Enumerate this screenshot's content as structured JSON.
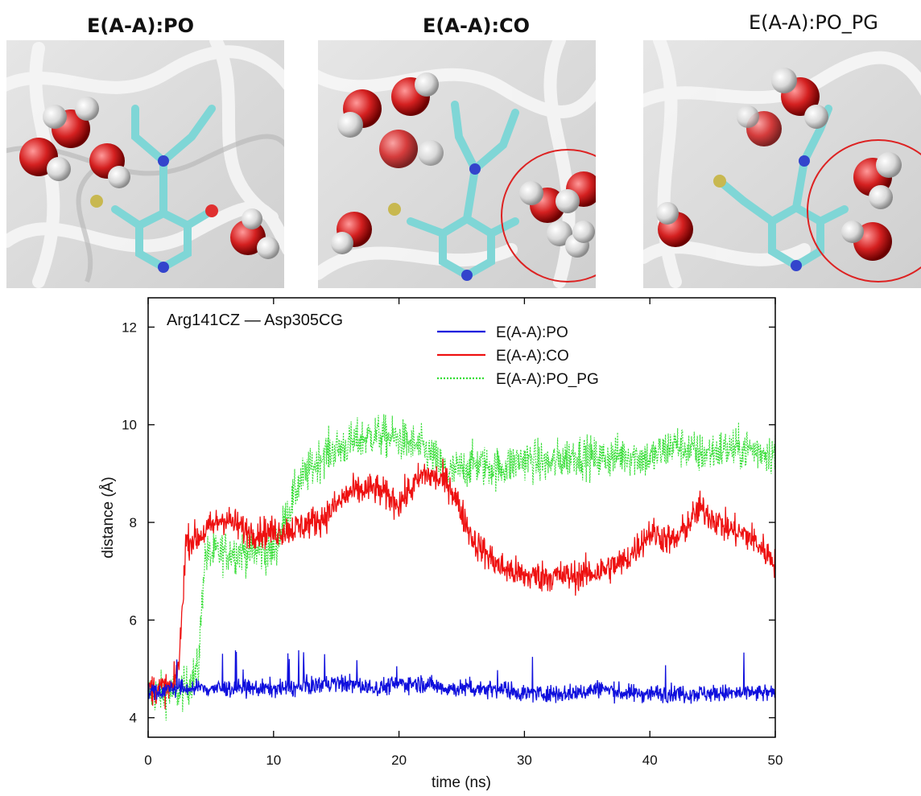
{
  "panels": [
    {
      "title": "E(A-A):PO"
    },
    {
      "title": "E(A-A):CO"
    },
    {
      "title": "E(A-A):PO_PG"
    }
  ],
  "chart_data": {
    "type": "line",
    "annotation": "Arg141CZ — Asp305CG",
    "xlabel": "time (ns)",
    "ylabel": "distance (Å)",
    "xlim": [
      0,
      50
    ],
    "ylim": [
      3.6,
      12.6
    ],
    "xticks": [
      0,
      10,
      20,
      30,
      40,
      50
    ],
    "yticks": [
      4,
      6,
      8,
      10,
      12
    ],
    "legend_position": "top-right",
    "series": [
      {
        "name": "E(A-A):PO",
        "color": "#1010dd",
        "style": "solid",
        "x": [
          0,
          2,
          4,
          6,
          8,
          10,
          12,
          14,
          16,
          18,
          20,
          22,
          24,
          26,
          28,
          30,
          32,
          34,
          36,
          38,
          40,
          42,
          44,
          46,
          48,
          50
        ],
        "y": [
          4.5,
          4.6,
          4.6,
          4.6,
          4.6,
          4.6,
          4.6,
          4.7,
          4.7,
          4.6,
          4.7,
          4.7,
          4.6,
          4.6,
          4.6,
          4.5,
          4.5,
          4.5,
          4.6,
          4.5,
          4.5,
          4.5,
          4.5,
          4.5,
          4.5,
          4.5
        ]
      },
      {
        "name": "E(A-A):CO",
        "color": "#ee1111",
        "style": "solid",
        "x": [
          0,
          2,
          2.5,
          3,
          4,
          6,
          8,
          10,
          12,
          14,
          16,
          18,
          20,
          22,
          24,
          26,
          28,
          30,
          32,
          34,
          36,
          38,
          40,
          42,
          44,
          46,
          48,
          50
        ],
        "y": [
          4.6,
          4.6,
          5.2,
          7.6,
          7.7,
          8.1,
          7.8,
          7.8,
          7.9,
          8.1,
          8.6,
          8.7,
          8.4,
          9.0,
          8.8,
          7.6,
          7.1,
          6.9,
          6.9,
          6.9,
          7.0,
          7.2,
          7.8,
          7.6,
          8.3,
          7.9,
          7.7,
          7.2
        ]
      },
      {
        "name": "E(A-A):PO_PG",
        "color": "#33dd33",
        "style": "dotted",
        "x": [
          0,
          2,
          3,
          4,
          4.5,
          6,
          8,
          10,
          12,
          14,
          16,
          18,
          20,
          22,
          24,
          26,
          28,
          30,
          32,
          34,
          36,
          38,
          40,
          42,
          44,
          46,
          48,
          50
        ],
        "y": [
          4.5,
          4.5,
          4.6,
          5.0,
          7.3,
          7.4,
          7.4,
          7.4,
          8.8,
          9.4,
          9.6,
          9.8,
          9.7,
          9.5,
          9.0,
          9.2,
          9.1,
          9.3,
          9.2,
          9.4,
          9.3,
          9.4,
          9.3,
          9.6,
          9.4,
          9.5,
          9.5,
          9.4
        ]
      }
    ]
  }
}
